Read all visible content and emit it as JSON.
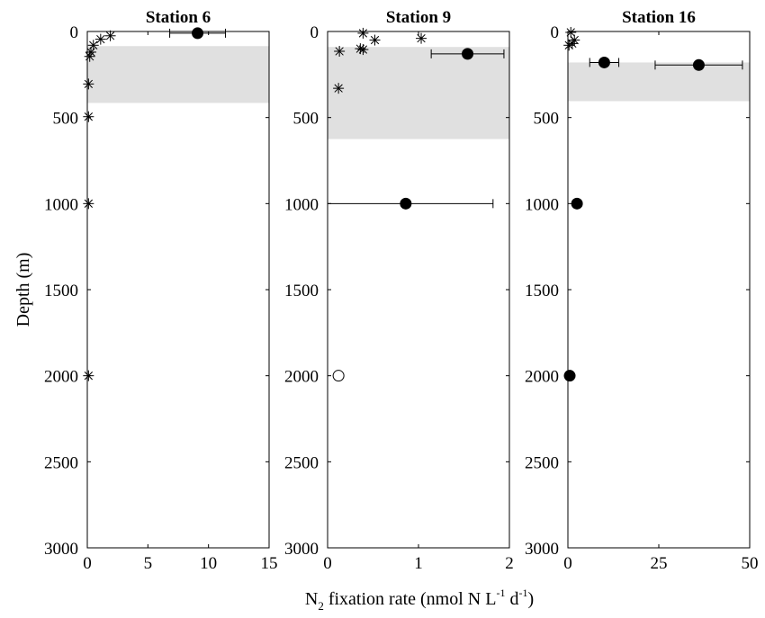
{
  "figure": {
    "ylabel": "Depth (m)",
    "xlabel_parts": {
      "n": "N",
      "sub": "2",
      "mid": " fixation rate (nmol N L",
      "exp1": "-1",
      "d": " d",
      "exp2": "-1",
      "close": ")"
    }
  },
  "chart_data": [
    {
      "type": "scatter",
      "title": "Station 6",
      "xlim": [
        0,
        15
      ],
      "ylim": [
        3000,
        0
      ],
      "xticks": [
        0,
        5,
        10,
        15
      ],
      "yticks": [
        0,
        500,
        1000,
        1500,
        2000,
        2500,
        3000
      ],
      "shaded_depth_band": [
        85,
        415
      ],
      "series": [
        {
          "marker": "filled-circle",
          "points": [
            {
              "x": 9.1,
              "y": 10,
              "xerr": [
                6.8,
                11.4
              ]
            }
          ]
        },
        {
          "marker": "asterisk",
          "points": [
            {
              "x": 1.1,
              "y": 45
            },
            {
              "x": 1.9,
              "y": 25
            },
            {
              "x": 0.5,
              "y": 80
            },
            {
              "x": 0.3,
              "y": 120
            },
            {
              "x": 0.2,
              "y": 145
            },
            {
              "x": 0.1,
              "y": 305
            },
            {
              "x": 0.1,
              "y": 495
            },
            {
              "x": 0.1,
              "y": 1000
            },
            {
              "x": 0.1,
              "y": 2000
            }
          ]
        }
      ]
    },
    {
      "type": "scatter",
      "title": "Station 9",
      "xlim": [
        0,
        2
      ],
      "ylim": [
        3000,
        0
      ],
      "xticks": [
        0,
        1,
        2
      ],
      "yticks": [
        0,
        500,
        1000,
        1500,
        2000,
        2500,
        3000
      ],
      "shaded_depth_band": [
        90,
        625
      ],
      "series": [
        {
          "marker": "filled-circle",
          "points": [
            {
              "x": 1.54,
              "y": 130,
              "xerr": [
                1.14,
                1.94
              ]
            },
            {
              "x": 0.86,
              "y": 1000,
              "xerr": [
                0,
                1.82
              ]
            }
          ]
        },
        {
          "marker": "open-circle",
          "points": [
            {
              "x": 0.12,
              "y": 2000
            }
          ]
        },
        {
          "marker": "asterisk",
          "points": [
            {
              "x": 0.39,
              "y": 10
            },
            {
              "x": 0.52,
              "y": 50
            },
            {
              "x": 1.03,
              "y": 40
            },
            {
              "x": 0.13,
              "y": 115
            },
            {
              "x": 0.36,
              "y": 100
            },
            {
              "x": 0.39,
              "y": 105
            },
            {
              "x": 0.12,
              "y": 330
            }
          ]
        }
      ]
    },
    {
      "type": "scatter",
      "title": "Station 16",
      "xlim": [
        0,
        50
      ],
      "ylim": [
        3000,
        0
      ],
      "xticks": [
        0,
        25,
        50
      ],
      "yticks": [
        0,
        500,
        1000,
        1500,
        2000,
        2500,
        3000
      ],
      "shaded_depth_band": [
        180,
        405
      ],
      "series": [
        {
          "marker": "filled-circle",
          "points": [
            {
              "x": 10,
              "y": 180,
              "xerr": [
                6,
                14
              ]
            },
            {
              "x": 36,
              "y": 195,
              "xerr": [
                24,
                48
              ]
            },
            {
              "x": 2.5,
              "y": 1000
            },
            {
              "x": 0.5,
              "y": 2000
            }
          ]
        },
        {
          "marker": "asterisk",
          "points": [
            {
              "x": 0.8,
              "y": 5
            },
            {
              "x": 1.8,
              "y": 50
            },
            {
              "x": 1.2,
              "y": 70
            },
            {
              "x": 0.3,
              "y": 80
            },
            {
              "x": 2.5,
              "y": 1000
            }
          ]
        }
      ]
    }
  ]
}
